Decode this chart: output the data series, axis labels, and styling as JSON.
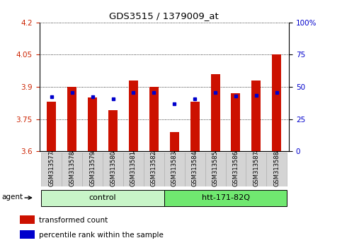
{
  "title": "GDS3515 / 1379009_at",
  "samples": [
    "GSM313577",
    "GSM313578",
    "GSM313579",
    "GSM313580",
    "GSM313581",
    "GSM313582",
    "GSM313583",
    "GSM313584",
    "GSM313585",
    "GSM313586",
    "GSM313587",
    "GSM313588"
  ],
  "transformed_count": [
    3.83,
    3.9,
    3.85,
    3.79,
    3.93,
    3.9,
    3.69,
    3.83,
    3.96,
    3.87,
    3.93,
    4.05
  ],
  "percentile_rank": [
    3.855,
    3.875,
    3.855,
    3.845,
    3.875,
    3.875,
    3.82,
    3.845,
    3.875,
    3.858,
    3.862,
    3.875
  ],
  "ylim": [
    3.6,
    4.2
  ],
  "yticks_left": [
    3.6,
    3.75,
    3.9,
    4.05,
    4.2
  ],
  "yticks_right": [
    0,
    25,
    50,
    75,
    100
  ],
  "right_tick_labels": [
    "0",
    "25",
    "50",
    "75",
    "100%"
  ],
  "groups": [
    {
      "label": "control",
      "start": 0,
      "end": 6,
      "color": "#c8f5c8"
    },
    {
      "label": "htt-171-82Q",
      "start": 6,
      "end": 12,
      "color": "#70e870"
    }
  ],
  "bar_color": "#cc1100",
  "percentile_color": "#0000cc",
  "background_color": "#ffffff",
  "tick_label_color_left": "#cc2200",
  "tick_label_color_right": "#0000cc",
  "bar_width": 0.45,
  "agent_label": "agent",
  "legend_items": [
    {
      "label": "transformed count",
      "color": "#cc1100"
    },
    {
      "label": "percentile rank within the sample",
      "color": "#0000cc"
    }
  ],
  "grid_color": "#000000",
  "ybase": 3.6
}
